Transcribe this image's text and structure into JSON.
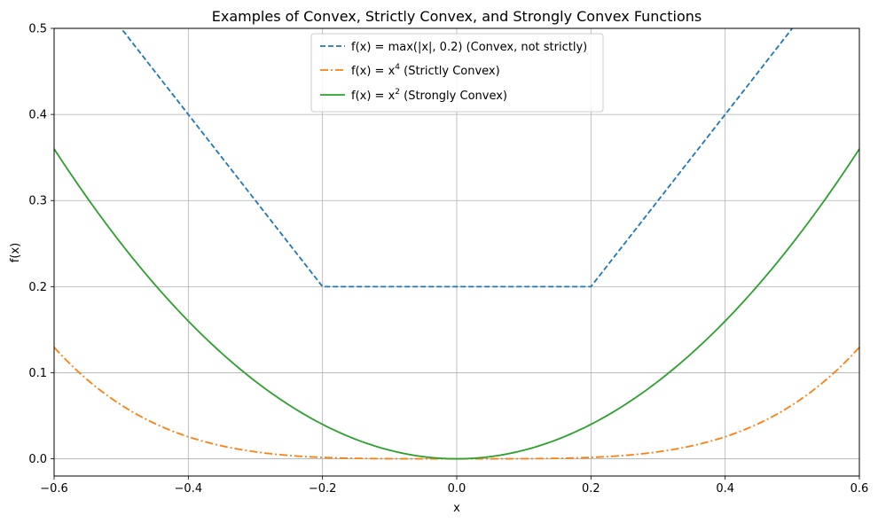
{
  "chart_data": {
    "type": "line",
    "title": "Examples of Convex, Strictly Convex, and Strongly Convex Functions",
    "xlabel": "x",
    "ylabel": "f(x)",
    "xlim": [
      -0.6,
      0.6
    ],
    "ylim": [
      -0.02,
      0.5
    ],
    "xticks": [
      -0.6,
      -0.4,
      -0.2,
      0.0,
      0.2,
      0.4,
      0.6
    ],
    "xtick_labels": [
      "−0.6",
      "−0.4",
      "−0.2",
      "0.0",
      "0.2",
      "0.4",
      "0.6"
    ],
    "yticks": [
      0.0,
      0.1,
      0.2,
      0.3,
      0.4,
      0.5
    ],
    "ytick_labels": [
      "0.0",
      "0.1",
      "0.2",
      "0.3",
      "0.4",
      "0.5"
    ],
    "grid": true,
    "legend_position": "top-center",
    "series": [
      {
        "name": "f(x) = max(|x|, 0.2) (Convex, not strictly)",
        "legend_prefix": "f(x) = max(|x|, 0.2)",
        "legend_suffix": " (Convex, not strictly)",
        "color": "#1f77b4",
        "linestyle": "dashed",
        "x": [
          -0.6,
          -0.5,
          -0.4,
          -0.3,
          -0.2,
          0.0,
          0.2,
          0.3,
          0.4,
          0.5,
          0.6
        ],
        "y": [
          0.6,
          0.5,
          0.4,
          0.3,
          0.2,
          0.2,
          0.2,
          0.3,
          0.4,
          0.5,
          0.6
        ]
      },
      {
        "name": "f(x) = x^4 (Strictly Convex)",
        "legend_prefix": "f(x) = x",
        "legend_sup": "4",
        "legend_suffix": " (Strictly Convex)",
        "color": "#ff7f0e",
        "linestyle": "dashdot",
        "x": [
          -0.6,
          -0.5,
          -0.4,
          -0.3,
          -0.2,
          -0.1,
          0.0,
          0.1,
          0.2,
          0.3,
          0.4,
          0.5,
          0.6
        ],
        "y": [
          0.1296,
          0.0625,
          0.0256,
          0.0081,
          0.0016,
          0.0001,
          0.0,
          0.0001,
          0.0016,
          0.0081,
          0.0256,
          0.0625,
          0.1296
        ]
      },
      {
        "name": "f(x) = x^2 (Strongly Convex)",
        "legend_prefix": "f(x) = x",
        "legend_sup": "2",
        "legend_suffix": " (Strongly Convex)",
        "color": "#2ca02c",
        "linestyle": "solid",
        "x": [
          -0.6,
          -0.5,
          -0.4,
          -0.3,
          -0.2,
          -0.1,
          0.0,
          0.1,
          0.2,
          0.3,
          0.4,
          0.5,
          0.6
        ],
        "y": [
          0.36,
          0.25,
          0.16,
          0.09,
          0.04,
          0.01,
          0.0,
          0.01,
          0.04,
          0.09,
          0.16,
          0.25,
          0.36
        ]
      }
    ]
  }
}
